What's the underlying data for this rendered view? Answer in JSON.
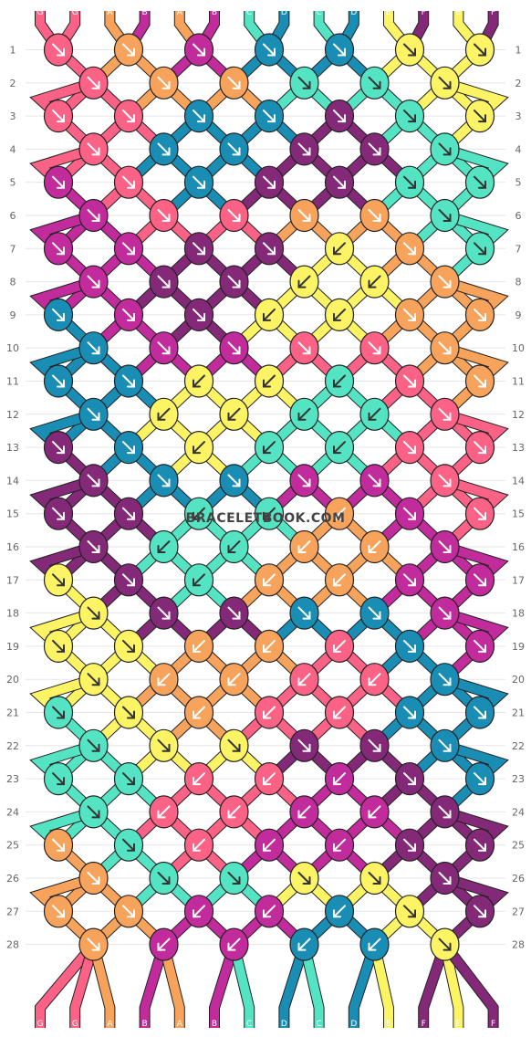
{
  "watermark": "BRACELETBOOK.COM",
  "colors": {
    "A": "#f7a35c",
    "B": "#c12b9c",
    "C": "#54e4c4",
    "D": "#1a8db5",
    "E": "#fcf365",
    "F": "#832978",
    "G": "#fb6286"
  },
  "top_strings": [
    "G",
    "G",
    "A",
    "B",
    "A",
    "B",
    "C",
    "D",
    "C",
    "D",
    "E",
    "F",
    "E",
    "F"
  ],
  "bottom_strings": [
    "G",
    "G",
    "A",
    "B",
    "A",
    "B",
    "C",
    "D",
    "C",
    "D",
    "E",
    "F",
    "E",
    "F"
  ],
  "row_numbers": [
    "1",
    "2",
    "3",
    "4",
    "5",
    "6",
    "7",
    "8",
    "9",
    "10",
    "11",
    "12",
    "13",
    "14",
    "15",
    "16",
    "17",
    "18",
    "19",
    "20",
    "21",
    "22",
    "23",
    "24",
    "25",
    "26",
    "27",
    "28"
  ],
  "knot_rows": [
    {
      "row": "1",
      "knots": [
        {
          "c": "G",
          "d": "se"
        },
        {
          "c": "A",
          "d": "se"
        },
        {
          "c": "B",
          "d": "se"
        },
        {
          "c": "D",
          "d": "se"
        },
        {
          "c": "D",
          "d": "se"
        },
        {
          "c": "E",
          "d": "se"
        },
        {
          "c": "E",
          "d": "se"
        }
      ]
    },
    {
      "row": "2",
      "knots": [
        {
          "c": "G",
          "d": "se"
        },
        {
          "c": "A",
          "d": "se"
        },
        {
          "c": "A",
          "d": "se"
        },
        {
          "c": "C",
          "d": "se"
        },
        {
          "c": "C",
          "d": "se"
        },
        {
          "c": "E",
          "d": "se"
        }
      ]
    },
    {
      "row": "3",
      "knots": [
        {
          "c": "G",
          "d": "se"
        },
        {
          "c": "G",
          "d": "se"
        },
        {
          "c": "D",
          "d": "se"
        },
        {
          "c": "D",
          "d": "se"
        },
        {
          "c": "F",
          "d": "se"
        },
        {
          "c": "C",
          "d": "se"
        },
        {
          "c": "E",
          "d": "se"
        }
      ]
    },
    {
      "row": "4",
      "knots": [
        {
          "c": "G",
          "d": "se"
        },
        {
          "c": "D",
          "d": "se"
        },
        {
          "c": "D",
          "d": "se"
        },
        {
          "c": "F",
          "d": "se"
        },
        {
          "c": "F",
          "d": "se"
        },
        {
          "c": "C",
          "d": "se"
        }
      ]
    },
    {
      "row": "5",
      "knots": [
        {
          "c": "B",
          "d": "se"
        },
        {
          "c": "G",
          "d": "se"
        },
        {
          "c": "D",
          "d": "se"
        },
        {
          "c": "F",
          "d": "se"
        },
        {
          "c": "F",
          "d": "se"
        },
        {
          "c": "C",
          "d": "se"
        },
        {
          "c": "C",
          "d": "se"
        }
      ]
    },
    {
      "row": "6",
      "knots": [
        {
          "c": "B",
          "d": "se"
        },
        {
          "c": "G",
          "d": "se"
        },
        {
          "c": "G",
          "d": "se"
        },
        {
          "c": "A",
          "d": "se"
        },
        {
          "c": "A",
          "d": "se"
        },
        {
          "c": "C",
          "d": "se"
        }
      ]
    },
    {
      "row": "7",
      "knots": [
        {
          "c": "B",
          "d": "se"
        },
        {
          "c": "B",
          "d": "se"
        },
        {
          "c": "F",
          "d": "se"
        },
        {
          "c": "F",
          "d": "se"
        },
        {
          "c": "E",
          "d": "sw"
        },
        {
          "c": "A",
          "d": "se"
        },
        {
          "c": "C",
          "d": "se"
        }
      ]
    },
    {
      "row": "8",
      "knots": [
        {
          "c": "B",
          "d": "se"
        },
        {
          "c": "F",
          "d": "se"
        },
        {
          "c": "F",
          "d": "se"
        },
        {
          "c": "E",
          "d": "sw"
        },
        {
          "c": "E",
          "d": "sw"
        },
        {
          "c": "A",
          "d": "se"
        }
      ]
    },
    {
      "row": "9",
      "knots": [
        {
          "c": "D",
          "d": "se"
        },
        {
          "c": "B",
          "d": "se"
        },
        {
          "c": "F",
          "d": "se"
        },
        {
          "c": "E",
          "d": "sw"
        },
        {
          "c": "E",
          "d": "sw"
        },
        {
          "c": "A",
          "d": "se"
        },
        {
          "c": "A",
          "d": "se"
        }
      ]
    },
    {
      "row": "10",
      "knots": [
        {
          "c": "D",
          "d": "se"
        },
        {
          "c": "B",
          "d": "se"
        },
        {
          "c": "B",
          "d": "se"
        },
        {
          "c": "G",
          "d": "se"
        },
        {
          "c": "G",
          "d": "se"
        },
        {
          "c": "A",
          "d": "se"
        }
      ]
    },
    {
      "row": "11",
      "knots": [
        {
          "c": "D",
          "d": "se"
        },
        {
          "c": "D",
          "d": "se"
        },
        {
          "c": "E",
          "d": "sw"
        },
        {
          "c": "E",
          "d": "sw"
        },
        {
          "c": "C",
          "d": "sw"
        },
        {
          "c": "G",
          "d": "se"
        },
        {
          "c": "A",
          "d": "se"
        }
      ]
    },
    {
      "row": "12",
      "knots": [
        {
          "c": "D",
          "d": "se"
        },
        {
          "c": "E",
          "d": "sw"
        },
        {
          "c": "E",
          "d": "sw"
        },
        {
          "c": "C",
          "d": "sw"
        },
        {
          "c": "C",
          "d": "sw"
        },
        {
          "c": "G",
          "d": "se"
        }
      ]
    },
    {
      "row": "13",
      "knots": [
        {
          "c": "F",
          "d": "se"
        },
        {
          "c": "D",
          "d": "se"
        },
        {
          "c": "E",
          "d": "sw"
        },
        {
          "c": "C",
          "d": "sw"
        },
        {
          "c": "C",
          "d": "sw"
        },
        {
          "c": "G",
          "d": "se"
        },
        {
          "c": "G",
          "d": "se"
        }
      ]
    },
    {
      "row": "14",
      "knots": [
        {
          "c": "F",
          "d": "se"
        },
        {
          "c": "D",
          "d": "se"
        },
        {
          "c": "D",
          "d": "se"
        },
        {
          "c": "B",
          "d": "se"
        },
        {
          "c": "B",
          "d": "se"
        },
        {
          "c": "G",
          "d": "se"
        }
      ]
    },
    {
      "row": "15",
      "knots": [
        {
          "c": "F",
          "d": "se"
        },
        {
          "c": "F",
          "d": "se"
        },
        {
          "c": "C",
          "d": "sw"
        },
        {
          "c": "C",
          "d": "sw"
        },
        {
          "c": "A",
          "d": "sw"
        },
        {
          "c": "B",
          "d": "se"
        },
        {
          "c": "G",
          "d": "se"
        }
      ]
    },
    {
      "row": "16",
      "knots": [
        {
          "c": "F",
          "d": "se"
        },
        {
          "c": "C",
          "d": "sw"
        },
        {
          "c": "C",
          "d": "sw"
        },
        {
          "c": "A",
          "d": "sw"
        },
        {
          "c": "A",
          "d": "sw"
        },
        {
          "c": "B",
          "d": "se"
        }
      ]
    },
    {
      "row": "17",
      "knots": [
        {
          "c": "E",
          "d": "se"
        },
        {
          "c": "F",
          "d": "se"
        },
        {
          "c": "C",
          "d": "sw"
        },
        {
          "c": "A",
          "d": "sw"
        },
        {
          "c": "A",
          "d": "sw"
        },
        {
          "c": "B",
          "d": "se"
        },
        {
          "c": "B",
          "d": "se"
        }
      ]
    },
    {
      "row": "18",
      "knots": [
        {
          "c": "E",
          "d": "se"
        },
        {
          "c": "F",
          "d": "se"
        },
        {
          "c": "F",
          "d": "se"
        },
        {
          "c": "D",
          "d": "se"
        },
        {
          "c": "D",
          "d": "se"
        },
        {
          "c": "B",
          "d": "se"
        }
      ]
    },
    {
      "row": "19",
      "knots": [
        {
          "c": "E",
          "d": "se"
        },
        {
          "c": "E",
          "d": "se"
        },
        {
          "c": "A",
          "d": "sw"
        },
        {
          "c": "A",
          "d": "sw"
        },
        {
          "c": "G",
          "d": "sw"
        },
        {
          "c": "D",
          "d": "se"
        },
        {
          "c": "B",
          "d": "se"
        }
      ]
    },
    {
      "row": "20",
      "knots": [
        {
          "c": "E",
          "d": "se"
        },
        {
          "c": "A",
          "d": "sw"
        },
        {
          "c": "A",
          "d": "sw"
        },
        {
          "c": "G",
          "d": "sw"
        },
        {
          "c": "G",
          "d": "sw"
        },
        {
          "c": "D",
          "d": "se"
        }
      ]
    },
    {
      "row": "21",
      "knots": [
        {
          "c": "C",
          "d": "se"
        },
        {
          "c": "E",
          "d": "se"
        },
        {
          "c": "A",
          "d": "sw"
        },
        {
          "c": "G",
          "d": "sw"
        },
        {
          "c": "G",
          "d": "sw"
        },
        {
          "c": "D",
          "d": "se"
        },
        {
          "c": "D",
          "d": "se"
        }
      ]
    },
    {
      "row": "22",
      "knots": [
        {
          "c": "C",
          "d": "se"
        },
        {
          "c": "E",
          "d": "se"
        },
        {
          "c": "E",
          "d": "se"
        },
        {
          "c": "F",
          "d": "se"
        },
        {
          "c": "F",
          "d": "se"
        },
        {
          "c": "D",
          "d": "se"
        }
      ]
    },
    {
      "row": "23",
      "knots": [
        {
          "c": "C",
          "d": "se"
        },
        {
          "c": "C",
          "d": "se"
        },
        {
          "c": "G",
          "d": "sw"
        },
        {
          "c": "G",
          "d": "sw"
        },
        {
          "c": "B",
          "d": "sw"
        },
        {
          "c": "F",
          "d": "se"
        },
        {
          "c": "D",
          "d": "se"
        }
      ]
    },
    {
      "row": "24",
      "knots": [
        {
          "c": "C",
          "d": "se"
        },
        {
          "c": "G",
          "d": "sw"
        },
        {
          "c": "G",
          "d": "sw"
        },
        {
          "c": "B",
          "d": "sw"
        },
        {
          "c": "B",
          "d": "sw"
        },
        {
          "c": "F",
          "d": "se"
        }
      ]
    },
    {
      "row": "25",
      "knots": [
        {
          "c": "A",
          "d": "se"
        },
        {
          "c": "C",
          "d": "se"
        },
        {
          "c": "G",
          "d": "sw"
        },
        {
          "c": "B",
          "d": "sw"
        },
        {
          "c": "B",
          "d": "sw"
        },
        {
          "c": "F",
          "d": "se"
        },
        {
          "c": "F",
          "d": "se"
        }
      ]
    },
    {
      "row": "26",
      "knots": [
        {
          "c": "A",
          "d": "se"
        },
        {
          "c": "C",
          "d": "se"
        },
        {
          "c": "C",
          "d": "se"
        },
        {
          "c": "E",
          "d": "se"
        },
        {
          "c": "E",
          "d": "se"
        },
        {
          "c": "F",
          "d": "se"
        }
      ]
    },
    {
      "row": "27",
      "knots": [
        {
          "c": "A",
          "d": "se"
        },
        {
          "c": "A",
          "d": "se"
        },
        {
          "c": "B",
          "d": "sw"
        },
        {
          "c": "B",
          "d": "sw"
        },
        {
          "c": "D",
          "d": "sw"
        },
        {
          "c": "E",
          "d": "se"
        },
        {
          "c": "F",
          "d": "se"
        }
      ]
    },
    {
      "row": "28",
      "knots": [
        {
          "c": "A",
          "d": "se"
        },
        {
          "c": "B",
          "d": "sw"
        },
        {
          "c": "B",
          "d": "sw"
        },
        {
          "c": "D",
          "d": "sw"
        },
        {
          "c": "D",
          "d": "sw"
        },
        {
          "c": "E",
          "d": "se"
        }
      ]
    }
  ]
}
